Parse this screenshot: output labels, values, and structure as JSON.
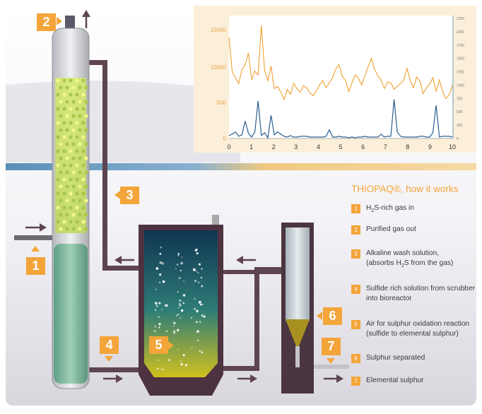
{
  "legend": {
    "title": "THIOPAQ®, how it works",
    "items": [
      {
        "num": "1",
        "text": "H2S-rich gas in"
      },
      {
        "num": "2",
        "text": "Purified gas out"
      },
      {
        "num": "3",
        "text": "Alkaline wash solution, (absorbs H2S from the gas)"
      },
      {
        "num": "4",
        "text": "Sulfide rich solution from scrubber into bioreactor"
      },
      {
        "num": "5",
        "text": "Air for sulphur oxidation reaction (sulfide to elemental sulphur)"
      },
      {
        "num": "6",
        "text": "Sulphur separated"
      },
      {
        "num": "7",
        "text": "Elemental sulphur"
      }
    ]
  },
  "badges": [
    "1",
    "2",
    "3",
    "4",
    "5",
    "6",
    "7"
  ],
  "colors": {
    "accent": "#f3a53a",
    "pipe": "#5e4450",
    "vessel": "#4d3340",
    "liquid_top": "#0f3552",
    "liquid_bottom": "#c9b31f"
  },
  "chart_data": {
    "type": "line",
    "x_ticks": [
      "0",
      "1",
      "2",
      "3",
      "4",
      "5",
      "6",
      "7",
      "8",
      "9",
      "10"
    ],
    "xlim": [
      0,
      10
    ],
    "left_ticks": [
      "15000",
      "10000",
      "500",
      "0"
    ],
    "right_ticks": [
      "2250",
      "2000",
      "1750",
      "1500",
      "1250",
      "1000",
      "750",
      "500",
      "250",
      "0"
    ],
    "series": [
      {
        "color": "#f0a030",
        "axis": "left",
        "values": [
          14000,
          9200,
          8400,
          7600,
          9500,
          10200,
          11800,
          8100,
          9300,
          8800,
          15600,
          9400,
          8000,
          10000,
          6900,
          7200,
          6400,
          5400,
          6800,
          6100,
          7600,
          6900,
          6400,
          7300,
          7000,
          6300,
          5900,
          6600,
          7400,
          8000,
          7000,
          7700,
          8400,
          9600,
          10200,
          8600,
          8000,
          6500,
          7700,
          8800,
          8300,
          7400,
          8700,
          9900,
          11100,
          9500,
          8700,
          8100,
          6900,
          7800,
          7700,
          6800,
          7200,
          7600,
          8100,
          9700,
          8000,
          7000,
          8500,
          7900,
          6200,
          7000,
          7500,
          8400,
          6500,
          8100,
          6500,
          5500,
          6000,
          7300
        ]
      },
      {
        "color": "#2c5f8e",
        "axis": "left",
        "values": [
          400,
          600,
          900,
          300,
          500,
          2400,
          700,
          200,
          900,
          5200,
          400,
          800,
          100,
          3200,
          500,
          900,
          600,
          300,
          200,
          400,
          200,
          200,
          300,
          300,
          300,
          200,
          200,
          200,
          200,
          200,
          300,
          1200,
          200,
          200,
          300,
          200,
          200,
          100,
          200,
          100,
          200,
          200,
          300,
          200,
          200,
          200,
          200,
          600,
          200,
          300,
          300,
          5400,
          900,
          300,
          200,
          200,
          200,
          200,
          200,
          300,
          300,
          200,
          200,
          800,
          4600,
          200,
          300,
          300,
          300,
          200
        ]
      }
    ]
  }
}
